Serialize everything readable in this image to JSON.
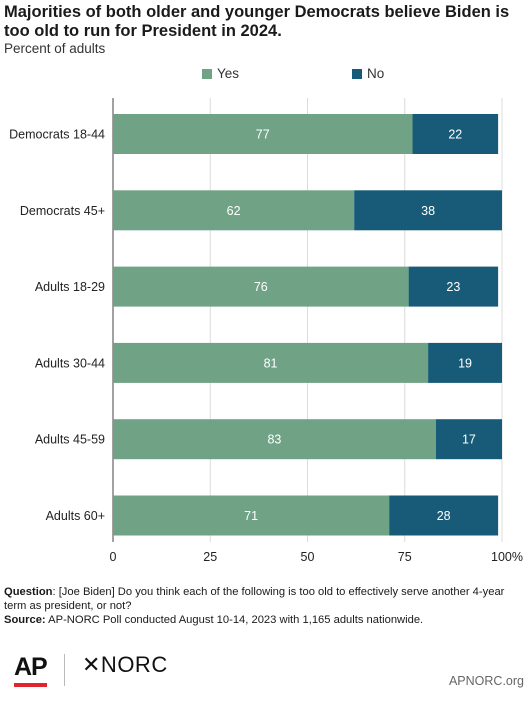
{
  "title": "Majorities of both older and younger Democrats believe Biden is too old to run for President in 2024.",
  "subtitle": "Percent of adults",
  "colors": {
    "yes": "#70a286",
    "no": "#175b78"
  },
  "chart_data": {
    "type": "bar",
    "orientation": "horizontal",
    "stacked": true,
    "categories": [
      "Democrats 18-44",
      "Democrats 45+",
      "Adults 18-29",
      "Adults 30-44",
      "Adults 45-59",
      "Adults 60+"
    ],
    "series": [
      {
        "name": "Yes",
        "values": [
          77,
          62,
          76,
          81,
          83,
          71
        ]
      },
      {
        "name": "No",
        "values": [
          22,
          38,
          23,
          19,
          17,
          28
        ]
      }
    ],
    "xlim": [
      0,
      100
    ],
    "xticks": [
      "0",
      "25",
      "50",
      "75",
      "100%"
    ],
    "legend": "top-center",
    "grid": true
  },
  "footnote": {
    "question_label": "Question",
    "question_text": ": [Joe Biden] Do you think each of the following is too old to effectively serve another 4-year term as president, or not?",
    "source_label": "Source:",
    "source_text": " AP-NORC Poll conducted August 10-14, 2023 with 1,165 adults nationwide."
  },
  "branding": {
    "ap": "AP",
    "norc": "✕NORC",
    "site": "APNORC.org"
  }
}
